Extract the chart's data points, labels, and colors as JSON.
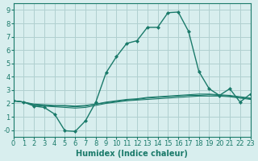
{
  "xlabel": "Humidex (Indice chaleur)",
  "xlim": [
    0,
    23
  ],
  "ylim": [
    -0.5,
    9.5
  ],
  "yticks": [
    0,
    1,
    2,
    3,
    4,
    5,
    6,
    7,
    8,
    9
  ],
  "xticks": [
    0,
    1,
    2,
    3,
    4,
    5,
    6,
    7,
    8,
    9,
    10,
    11,
    12,
    13,
    14,
    15,
    16,
    17,
    18,
    19,
    20,
    21,
    22,
    23
  ],
  "background_color": "#d8eeee",
  "grid_color": "#b0d0d0",
  "line_color": "#1a7a6a",
  "main_line": {
    "x": [
      0,
      1,
      2,
      3,
      4,
      5,
      6,
      7,
      8,
      9,
      10,
      11,
      12,
      13,
      14,
      15,
      16,
      17,
      18,
      19,
      20,
      21,
      22,
      23
    ],
    "y": [
      2.2,
      2.1,
      1.8,
      1.7,
      1.2,
      -0.05,
      -0.1,
      0.7,
      2.1,
      4.3,
      5.5,
      6.5,
      6.7,
      7.7,
      7.7,
      8.8,
      8.85,
      7.4,
      4.4,
      3.1,
      2.6,
      3.1,
      2.1,
      2.7
    ]
  },
  "flat_lines": [
    {
      "x": [
        0,
        1,
        2,
        3,
        4,
        5,
        6,
        7,
        8,
        9,
        10,
        11,
        12,
        13,
        14,
        15,
        16,
        17,
        18,
        19,
        20,
        21,
        22,
        23
      ],
      "y": [
        2.2,
        2.1,
        1.85,
        1.8,
        1.75,
        1.7,
        1.65,
        1.7,
        1.85,
        2.0,
        2.1,
        2.2,
        2.25,
        2.3,
        2.35,
        2.4,
        2.45,
        2.5,
        2.55,
        2.55,
        2.55,
        2.5,
        2.4,
        2.3
      ]
    },
    {
      "x": [
        0,
        1,
        2,
        3,
        4,
        5,
        6,
        7,
        8,
        9,
        10,
        11,
        12,
        13,
        14,
        15,
        16,
        17,
        18,
        19,
        20,
        21,
        22,
        23
      ],
      "y": [
        2.2,
        2.1,
        1.9,
        1.85,
        1.8,
        1.8,
        1.75,
        1.8,
        1.95,
        2.1,
        2.2,
        2.3,
        2.35,
        2.45,
        2.5,
        2.55,
        2.6,
        2.65,
        2.7,
        2.7,
        2.65,
        2.6,
        2.5,
        2.4
      ]
    },
    {
      "x": [
        0,
        1,
        2,
        3,
        4,
        5,
        6,
        7,
        8,
        9,
        10,
        11,
        12,
        13,
        14,
        15,
        16,
        17,
        18,
        19,
        20,
        21,
        22,
        23
      ],
      "y": [
        2.2,
        2.1,
        1.95,
        1.9,
        1.85,
        1.85,
        1.8,
        1.85,
        1.95,
        2.05,
        2.15,
        2.25,
        2.3,
        2.4,
        2.45,
        2.5,
        2.55,
        2.6,
        2.6,
        2.65,
        2.6,
        2.55,
        2.45,
        2.35
      ]
    }
  ]
}
